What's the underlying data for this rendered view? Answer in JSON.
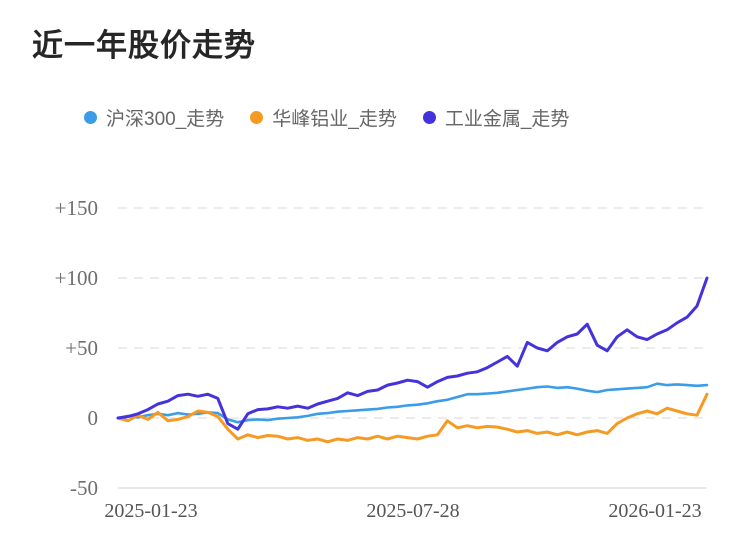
{
  "chart_data": {
    "type": "line",
    "title": "近一年股价走势",
    "legend_position": "top",
    "grid": "dashed-horizontal",
    "x_axis": {
      "tick_labels": [
        "2025-01-23",
        "2025-07-28",
        "2026-01-23"
      ],
      "range": [
        "2025-01-23",
        "2026-01-23"
      ]
    },
    "y_axis": {
      "tick_labels": [
        "+150",
        "+100",
        "+50",
        "0",
        "-50"
      ],
      "tick_values": [
        150,
        100,
        50,
        0,
        -50
      ],
      "ylim": [
        -50,
        150
      ],
      "unit": "percent_change"
    },
    "series": [
      {
        "name": "沪深300_走势",
        "color": "#3B9CE8",
        "values": [
          0,
          1.5,
          0.5,
          2,
          3,
          2,
          3.5,
          2.5,
          3,
          4,
          3.5,
          -1,
          -3,
          -1.5,
          -1,
          -1.5,
          -0.5,
          0,
          0.5,
          1.5,
          3,
          3.5,
          4.5,
          5,
          5.5,
          6,
          6.5,
          7.5,
          8,
          9,
          9.5,
          10.5,
          12,
          13,
          15,
          17,
          17,
          17.5,
          18,
          19,
          20,
          21,
          22,
          22.5,
          21.5,
          22,
          21,
          19.5,
          18.5,
          20,
          20.5,
          21,
          21.5,
          22,
          24.5,
          23.5,
          24,
          23.5,
          23,
          23.5
        ]
      },
      {
        "name": "华峰铝业_走势",
        "color": "#F59A23",
        "values": [
          0,
          -2,
          2,
          -1,
          4,
          -2,
          -1,
          1,
          5,
          4,
          1,
          -8,
          -15,
          -12,
          -14,
          -12.5,
          -13,
          -15,
          -14,
          -16,
          -15,
          -17,
          -15,
          -16,
          -14,
          -15,
          -13,
          -15,
          -13,
          -14,
          -15,
          -13,
          -12,
          -2,
          -7,
          -5.5,
          -7,
          -6,
          -6.5,
          -8,
          -10,
          -9,
          -11,
          -10,
          -12,
          -10,
          -12,
          -10,
          -9,
          -11,
          -4,
          0,
          3,
          5,
          3,
          7,
          5,
          3,
          2,
          17
        ]
      },
      {
        "name": "工业金属_走势",
        "color": "#4433DB",
        "values": [
          0,
          1,
          3,
          6,
          10,
          12,
          16,
          17,
          15.5,
          17,
          14,
          -4,
          -8,
          3,
          6,
          6.5,
          8,
          7,
          8.5,
          7,
          10,
          12,
          14,
          18,
          16,
          19,
          20,
          23.5,
          25,
          27,
          26,
          22,
          26,
          29,
          30,
          32,
          33,
          36,
          40,
          44,
          37,
          54,
          50,
          48,
          54,
          58,
          60,
          67,
          52,
          48,
          58,
          63,
          58,
          56,
          60,
          63,
          68,
          72,
          80,
          100
        ]
      }
    ]
  }
}
